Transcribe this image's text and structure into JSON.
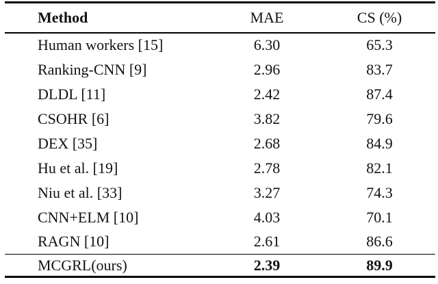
{
  "table": {
    "columns": [
      {
        "label": "Method"
      },
      {
        "label": "MAE"
      },
      {
        "label": "CS (%)"
      }
    ],
    "rows": [
      {
        "method": "Human workers [15]",
        "mae": "6.30",
        "cs": "65.3"
      },
      {
        "method": "Ranking-CNN [9]",
        "mae": "2.96",
        "cs": "83.7"
      },
      {
        "method": "DLDL [11]",
        "mae": "2.42",
        "cs": "87.4"
      },
      {
        "method": "CSOHR [6]",
        "mae": "3.82",
        "cs": "79.6"
      },
      {
        "method": "DEX [35]",
        "mae": "2.68",
        "cs": "84.9"
      },
      {
        "method": "Hu et al. [19]",
        "mae": "2.78",
        "cs": "82.1"
      },
      {
        "method": "Niu et al. [33]",
        "mae": "3.27",
        "cs": "74.3"
      },
      {
        "method": "CNN+ELM [10]",
        "mae": "4.03",
        "cs": "70.1"
      },
      {
        "method": "RAGN [10]",
        "mae": "2.61",
        "cs": "86.6"
      }
    ],
    "final_row": {
      "method": "MCGRL(ours)",
      "mae": "2.39",
      "cs": "89.9"
    },
    "colors": {
      "text": "#121212",
      "rule": "#000000",
      "background": "#ffffff"
    }
  }
}
